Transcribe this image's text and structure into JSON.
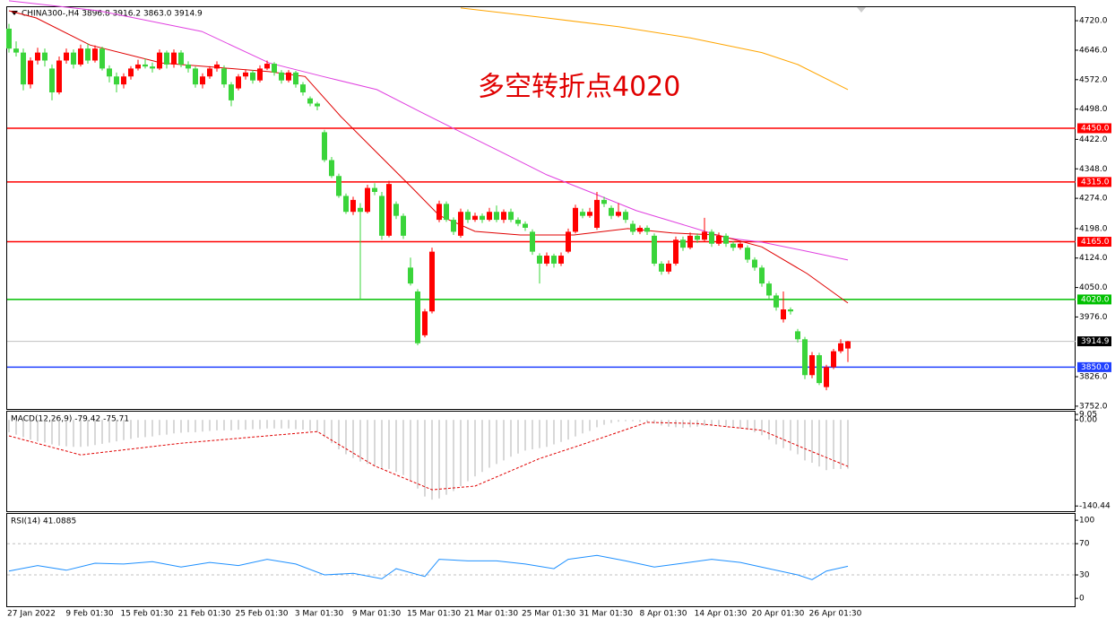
{
  "chart_data": [
    {
      "type": "candlestick",
      "title": "CHINA300-,H4  3896.8 3916.2 3863.0 3914.9",
      "up_color": "#ff0000",
      "down_color": "#3ad43a",
      "candles": [
        [
          4700,
          4712,
          4640,
          4650
        ],
        [
          4650,
          4668,
          4630,
          4640
        ],
        [
          4640,
          4650,
          4545,
          4560
        ],
        [
          4560,
          4628,
          4550,
          4620
        ],
        [
          4620,
          4652,
          4610,
          4640
        ],
        [
          4640,
          4650,
          4605,
          4620
        ],
        [
          4600,
          4610,
          4520,
          4540
        ],
        [
          4540,
          4630,
          4535,
          4620
        ],
        [
          4620,
          4650,
          4612,
          4640
        ],
        [
          4640,
          4648,
          4600,
          4610
        ],
        [
          4610,
          4660,
          4605,
          4650
        ],
        [
          4650,
          4662,
          4612,
          4620
        ],
        [
          4620,
          4658,
          4615,
          4650
        ],
        [
          4650,
          4655,
          4595,
          4600
        ],
        [
          4600,
          4608,
          4565,
          4580
        ],
        [
          4580,
          4590,
          4540,
          4560
        ],
        [
          4560,
          4588,
          4550,
          4580
        ],
        [
          4580,
          4606,
          4572,
          4600
        ],
        [
          4600,
          4622,
          4595,
          4610
        ],
        [
          4610,
          4625,
          4600,
          4605
        ],
        [
          4605,
          4615,
          4590,
          4600
        ],
        [
          4600,
          4648,
          4596,
          4640
        ],
        [
          4640,
          4645,
          4600,
          4610
        ],
        [
          4610,
          4648,
          4602,
          4640
        ],
        [
          4640,
          4646,
          4603,
          4610
        ],
        [
          4610,
          4618,
          4590,
          4600
        ],
        [
          4600,
          4605,
          4552,
          4560
        ],
        [
          4560,
          4588,
          4550,
          4580
        ],
        [
          4580,
          4606,
          4574,
          4600
        ],
        [
          4600,
          4618,
          4592,
          4610
        ],
        [
          4600,
          4608,
          4552,
          4560
        ],
        [
          4560,
          4566,
          4505,
          4520
        ],
        [
          4550,
          4586,
          4545,
          4580
        ],
        [
          4580,
          4598,
          4572,
          4590
        ],
        [
          4590,
          4596,
          4562,
          4570
        ],
        [
          4570,
          4608,
          4565,
          4600
        ],
        [
          4600,
          4620,
          4596,
          4612
        ],
        [
          4612,
          4616,
          4582,
          4590
        ],
        [
          4590,
          4596,
          4562,
          4570
        ],
        [
          4570,
          4596,
          4565,
          4590
        ],
        [
          4590,
          4594,
          4552,
          4560
        ],
        [
          4560,
          4566,
          4532,
          4540
        ],
        [
          4525,
          4530,
          4505,
          4512
        ],
        [
          4512,
          4516,
          4495,
          4505
        ],
        [
          4440,
          4446,
          4365,
          4370
        ],
        [
          4370,
          4378,
          4325,
          4330
        ],
        [
          4330,
          4336,
          4275,
          4280
        ],
        [
          4280,
          4286,
          4235,
          4240
        ],
        [
          4240,
          4278,
          4232,
          4270
        ],
        [
          4250,
          4262,
          4020,
          4240
        ],
        [
          4240,
          4308,
          4236,
          4300
        ],
        [
          4300,
          4312,
          4282,
          4290
        ],
        [
          4280,
          4290,
          4170,
          4180
        ],
        [
          4180,
          4318,
          4176,
          4310
        ],
        [
          4260,
          4266,
          4222,
          4230
        ],
        [
          4230,
          4236,
          4172,
          4180
        ],
        [
          4100,
          4125,
          4055,
          4060
        ],
        [
          4040,
          4046,
          3905,
          3910
        ],
        [
          3930,
          3996,
          3925,
          3990
        ],
        [
          3990,
          4150,
          3985,
          4140
        ],
        [
          4220,
          4268,
          4214,
          4260
        ],
        [
          4260,
          4266,
          4215,
          4220
        ],
        [
          4220,
          4226,
          4182,
          4190
        ],
        [
          4180,
          4248,
          4175,
          4240
        ],
        [
          4240,
          4246,
          4212,
          4220
        ],
        [
          4220,
          4238,
          4215,
          4230
        ],
        [
          4230,
          4236,
          4212,
          4220
        ],
        [
          4220,
          4250,
          4216,
          4240
        ],
        [
          4240,
          4256,
          4214,
          4220
        ],
        [
          4220,
          4246,
          4212,
          4240
        ],
        [
          4240,
          4248,
          4214,
          4220
        ],
        [
          4220,
          4226,
          4204,
          4210
        ],
        [
          4210,
          4216,
          4192,
          4200
        ],
        [
          4190,
          4196,
          4132,
          4140
        ],
        [
          4130,
          4136,
          4060,
          4110
        ],
        [
          4110,
          4138,
          4104,
          4130
        ],
        [
          4130,
          4135,
          4100,
          4110
        ],
        [
          4110,
          4138,
          4104,
          4130
        ],
        [
          4140,
          4198,
          4136,
          4190
        ],
        [
          4190,
          4258,
          4186,
          4250
        ],
        [
          4240,
          4248,
          4224,
          4230
        ],
        [
          4230,
          4250,
          4225,
          4240
        ],
        [
          4200,
          4290,
          4195,
          4270
        ],
        [
          4270,
          4278,
          4252,
          4260
        ],
        [
          4250,
          4256,
          4222,
          4230
        ],
        [
          4230,
          4262,
          4226,
          4240
        ],
        [
          4240,
          4246,
          4212,
          4220
        ],
        [
          4210,
          4218,
          4182,
          4190
        ],
        [
          4190,
          4206,
          4184,
          4200
        ],
        [
          4200,
          4206,
          4182,
          4190
        ],
        [
          4180,
          4186,
          4104,
          4110
        ],
        [
          4110,
          4116,
          4082,
          4090
        ],
        [
          4090,
          4118,
          4084,
          4110
        ],
        [
          4110,
          4178,
          4105,
          4170
        ],
        [
          4170,
          4178,
          4142,
          4150
        ],
        [
          4150,
          4188,
          4146,
          4180
        ],
        [
          4180,
          4186,
          4162,
          4170
        ],
        [
          4170,
          4225,
          4165,
          4190
        ],
        [
          4190,
          4196,
          4152,
          4160
        ],
        [
          4160,
          4188,
          4155,
          4180
        ],
        [
          4180,
          4186,
          4152,
          4160
        ],
        [
          4160,
          4166,
          4142,
          4150
        ],
        [
          4150,
          4168,
          4145,
          4160
        ],
        [
          4150,
          4156,
          4112,
          4120
        ],
        [
          4120,
          4126,
          4092,
          4100
        ],
        [
          4100,
          4106,
          4052,
          4060
        ],
        [
          4060,
          4066,
          4022,
          4030
        ],
        [
          4030,
          4036,
          3992,
          4000
        ],
        [
          3970,
          4040,
          3962,
          3995
        ],
        [
          3995,
          4000,
          3982,
          3990
        ],
        [
          3940,
          3946,
          3912,
          3920
        ],
        [
          3920,
          3926,
          3820,
          3830
        ],
        [
          3830,
          3888,
          3822,
          3880
        ],
        [
          3880,
          3886,
          3805,
          3810
        ],
        [
          3800,
          3856,
          3792,
          3850
        ],
        [
          3850,
          3896,
          3845,
          3890
        ],
        [
          3890,
          3920,
          3885,
          3910
        ],
        [
          3896.8,
          3916.2,
          3863.0,
          3914.9
        ]
      ],
      "moving_averages": [
        {
          "color": "#ffa500",
          "x": [
            63,
            75,
            85,
            95,
            105,
            110,
            117
          ],
          "values": [
            4752,
            4727,
            4705,
            4677,
            4640,
            4610,
            4547
          ]
        },
        {
          "color": "#e040e0",
          "x": [
            0,
            12.5,
            26.9,
            36.3,
            43.8,
            51.3,
            57.5,
            62.5,
            68.8,
            75,
            81.3,
            87.5,
            93.8,
            100,
            105,
            111.3,
            117
          ],
          "values": [
            4770,
            4745,
            4693,
            4614,
            4580,
            4547,
            4490,
            4445,
            4389,
            4333,
            4288,
            4243,
            4209,
            4175,
            4164,
            4141,
            4119
          ]
        },
        {
          "color": "#e00000",
          "x": [
            0,
            3.8,
            11.3,
            21.3,
            28.8,
            36.3,
            41.3,
            46.3,
            51.3,
            56.3,
            60,
            65,
            71.3,
            78.8,
            86.3,
            92.5,
            98.8,
            105,
            111.3,
            117
          ],
          "values": [
            4745,
            4727,
            4659,
            4614,
            4603,
            4592,
            4580,
            4479,
            4389,
            4299,
            4231,
            4191,
            4182,
            4182,
            4198,
            4187,
            4182,
            4152,
            4085,
            4011
          ]
        }
      ],
      "levels": [
        {
          "value": 4450,
          "label": "4450.0",
          "color": "#ff0000"
        },
        {
          "value": 4315,
          "label": "4315.0",
          "color": "#ff0000"
        },
        {
          "value": 4165,
          "label": "4165.0",
          "color": "#ff0000"
        },
        {
          "value": 4020,
          "label": "4020.0",
          "color": "#00c000"
        },
        {
          "value": 3850,
          "label": "3850.0",
          "color": "#2040ff"
        }
      ],
      "last_price": {
        "value": 3914.9,
        "label": "3914.9"
      },
      "annotation": {
        "text": "多空转折点4020",
        "color": "#e00000"
      },
      "ylim": [
        3745,
        4754
      ],
      "yticks": [
        {
          "value": 4720,
          "label": "4720.0"
        },
        {
          "value": 4646,
          "label": "4646.0"
        },
        {
          "value": 4572,
          "label": "4572.0"
        },
        {
          "value": 4498,
          "label": "4498.0"
        },
        {
          "value": 4422,
          "label": "4422.0"
        },
        {
          "value": 4348,
          "label": "4348.0"
        },
        {
          "value": 4274,
          "label": "4274.0"
        },
        {
          "value": 4198,
          "label": "4198.0"
        },
        {
          "value": 4124,
          "label": "4124.0"
        },
        {
          "value": 4050,
          "label": "4050.0"
        },
        {
          "value": 3976,
          "label": "3976.0"
        },
        {
          "value": 3826,
          "label": "3826.0"
        },
        {
          "value": 3752,
          "label": "3752.0"
        }
      ],
      "x_labels": [
        "27 Jan 2022",
        "9 Feb 01:30",
        "15 Feb 01:30",
        "21 Feb 01:30",
        "25 Feb 01:30",
        "3 Mar 01:30",
        "9 Mar 01:30",
        "15 Mar 01:30",
        "21 Mar 01:30",
        "25 Mar 01:30",
        "31 Mar 01:30",
        "8 Apr 01:30",
        "14 Apr 01:30",
        "20 Apr 01:30",
        "26 Apr 01:30"
      ]
    },
    {
      "type": "macd",
      "title": "MACD(12,26,9) -79.42 -75.71",
      "histogram": {
        "color": "#b0b0b0",
        "values": [
          -20,
          -24,
          -28,
          -32,
          -35,
          -37,
          -40,
          -42,
          -43,
          -44,
          -44,
          -43,
          -41,
          -39,
          -37,
          -35,
          -33,
          -31,
          -29,
          -28,
          -27,
          -25,
          -24,
          -22,
          -21,
          -20,
          -20,
          -19,
          -18,
          -17,
          -17,
          -17,
          -16,
          -16,
          -15,
          -15,
          -14,
          -14,
          -14,
          -14,
          -15,
          -16,
          -18,
          -20,
          -28,
          -38,
          -48,
          -56,
          -62,
          -68,
          -72,
          -75,
          -80,
          -80,
          -85,
          -90,
          -98,
          -112,
          -125,
          -130,
          -128,
          -122,
          -116,
          -108,
          -100,
          -92,
          -85,
          -78,
          -72,
          -66,
          -60,
          -55,
          -50,
          -48,
          -46,
          -44,
          -40,
          -36,
          -32,
          -27,
          -22,
          -18,
          -12,
          -8,
          -5,
          -3,
          -2,
          -2,
          -3,
          -4,
          -6,
          -9,
          -11,
          -12,
          -13,
          -12,
          -11,
          -10,
          -10,
          -10,
          -11,
          -12,
          -14,
          -16,
          -20,
          -25,
          -32,
          -40,
          -46,
          -50,
          -56,
          -66,
          -70,
          -76,
          -82,
          -80,
          -80,
          -79.42
        ]
      },
      "signal": {
        "color": "#e00000",
        "x": [
          0,
          10,
          24,
          36,
          43,
          51,
          59,
          65,
          74,
          80,
          89,
          96,
          105,
          111,
          117
        ],
        "values": [
          -26,
          -57,
          -38,
          -26,
          -19,
          -75,
          -114,
          -108,
          -63,
          -40,
          -4,
          -6,
          -17,
          -47,
          -75.71
        ]
      },
      "ylim": [
        -146,
        12
      ],
      "yticks": [
        9.05,
        {
          "value": 0,
          "label": "0.00"
        },
        -140.44
      ]
    },
    {
      "type": "line",
      "title": "RSI(14) 41.0885",
      "color": "#1e90ff",
      "x": [
        0,
        4,
        8,
        12,
        16,
        20,
        24,
        28,
        32,
        36,
        40,
        44,
        48,
        52,
        54,
        58,
        60,
        64,
        68,
        72,
        76,
        78,
        82,
        86,
        90,
        94,
        98,
        102,
        106,
        110,
        112,
        114,
        117
      ],
      "values": [
        35,
        42,
        36,
        45,
        44,
        47,
        40,
        46,
        42,
        50,
        44,
        30,
        32,
        25,
        38,
        28,
        50,
        48,
        48,
        44,
        38,
        50,
        55,
        48,
        40,
        45,
        50,
        46,
        38,
        30,
        24,
        35,
        41.0885
      ],
      "ylim": [
        -9,
        107
      ],
      "yticks": [
        100,
        70,
        30,
        0
      ]
    }
  ]
}
